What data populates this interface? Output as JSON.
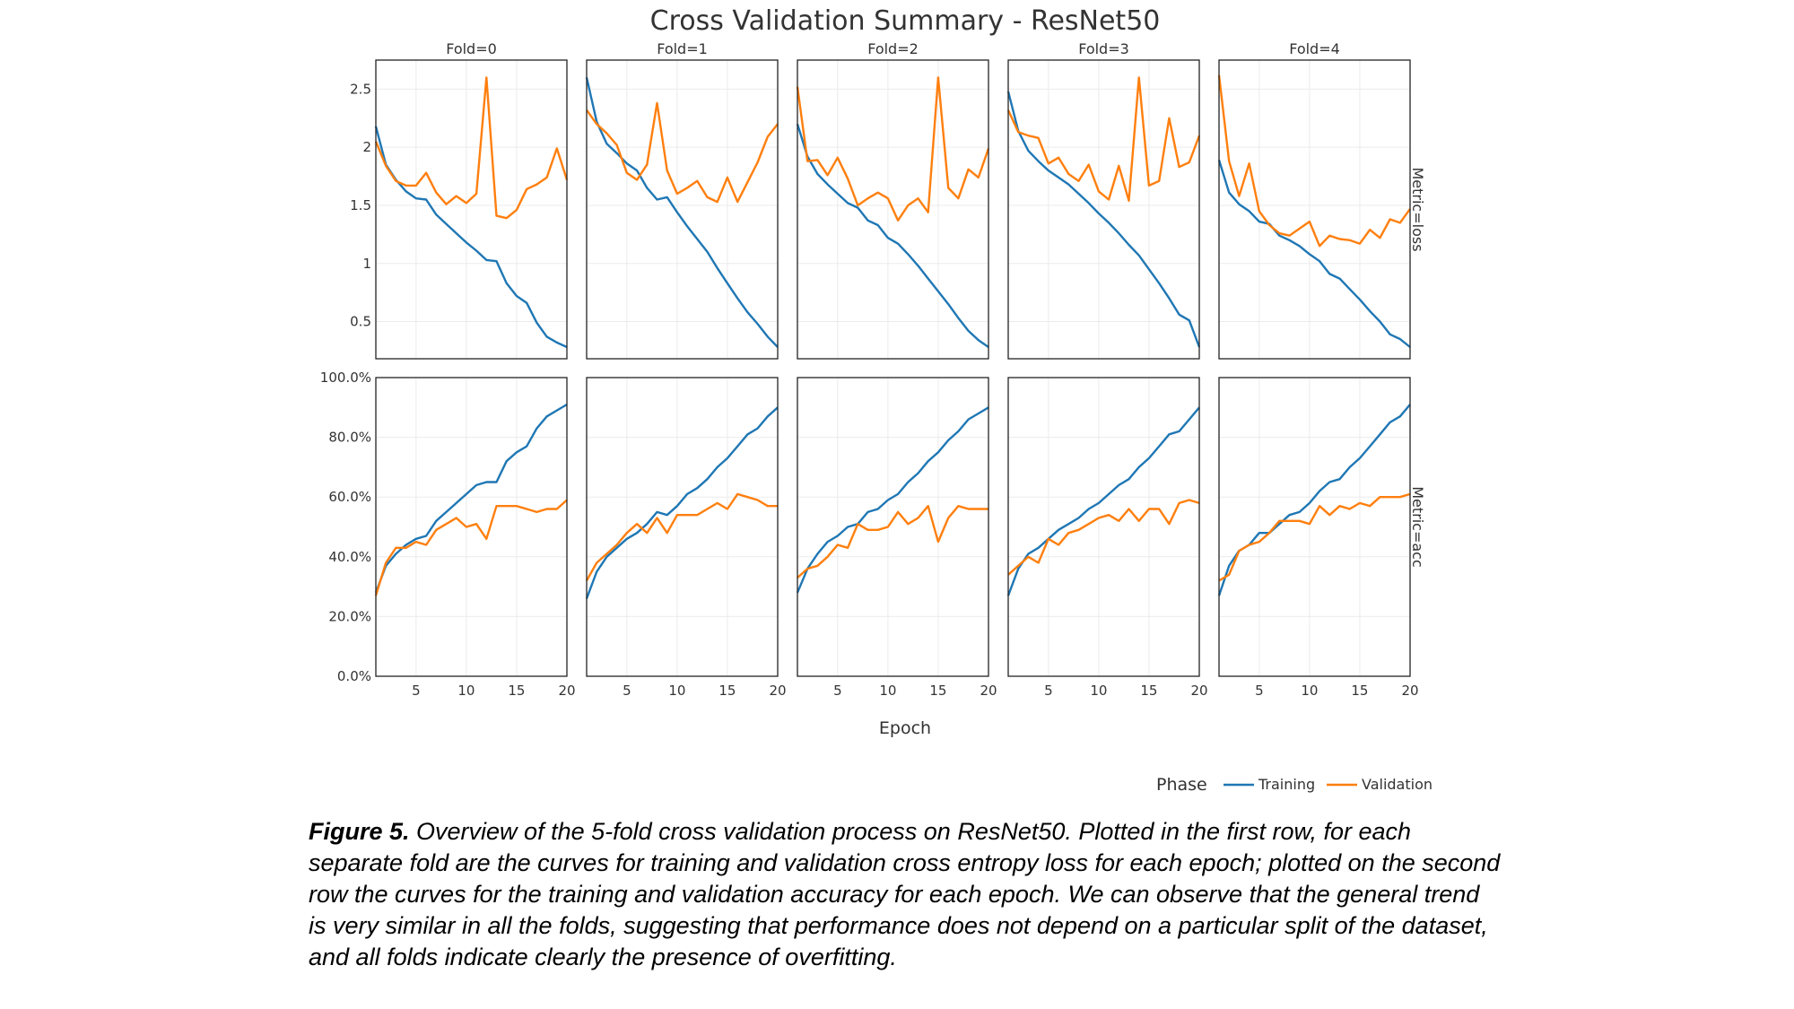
{
  "chart_data": {
    "type": "line",
    "title": "Cross Validation Summary - ResNet50",
    "xlabel": "Epoch",
    "xlim": [
      1,
      20
    ],
    "xticks": [
      5,
      10,
      15,
      20
    ],
    "legend": {
      "title": "Phase",
      "placement": "bottom-right",
      "entries": [
        {
          "name": "Training",
          "color": "#1f77b4"
        },
        {
          "name": "Validation",
          "color": "#ff7f0e"
        }
      ]
    },
    "columns": [
      "Fold=0",
      "Fold=1",
      "Fold=2",
      "Fold=3",
      "Fold=4"
    ],
    "rows": [
      {
        "label": "Metric=loss",
        "ylim": [
          0.18,
          2.75
        ],
        "yticks": [
          0.5,
          1,
          1.5,
          2,
          2.5
        ],
        "ytick_labels": [
          "0.5",
          "1",
          "1.5",
          "2",
          "2.5"
        ],
        "panels": [
          {
            "series": [
              {
                "name": "Training",
                "values": [
                  2.18,
                  1.85,
                  1.72,
                  1.62,
                  1.56,
                  1.55,
                  1.42,
                  1.34,
                  1.26,
                  1.18,
                  1.11,
                  1.03,
                  1.02,
                  0.83,
                  0.72,
                  0.66,
                  0.49,
                  0.37,
                  0.32,
                  0.28
                ]
              },
              {
                "name": "Validation",
                "values": [
                  2.05,
                  1.84,
                  1.71,
                  1.67,
                  1.67,
                  1.78,
                  1.61,
                  1.51,
                  1.58,
                  1.52,
                  1.6,
                  2.6,
                  1.41,
                  1.39,
                  1.46,
                  1.64,
                  1.68,
                  1.74,
                  1.99,
                  1.72
                ]
              }
            ]
          },
          {
            "series": [
              {
                "name": "Training",
                "values": [
                  2.6,
                  2.22,
                  2.03,
                  1.95,
                  1.86,
                  1.8,
                  1.65,
                  1.55,
                  1.57,
                  1.44,
                  1.32,
                  1.21,
                  1.1,
                  0.96,
                  0.83,
                  0.7,
                  0.58,
                  0.48,
                  0.37,
                  0.28
                ]
              },
              {
                "name": "Validation",
                "values": [
                  2.32,
                  2.2,
                  2.12,
                  2.02,
                  1.78,
                  1.72,
                  1.85,
                  2.38,
                  1.8,
                  1.6,
                  1.65,
                  1.71,
                  1.57,
                  1.53,
                  1.74,
                  1.53,
                  1.7,
                  1.87,
                  2.09,
                  2.2
                ]
              }
            ]
          },
          {
            "series": [
              {
                "name": "Training",
                "values": [
                  2.2,
                  1.92,
                  1.77,
                  1.68,
                  1.6,
                  1.52,
                  1.48,
                  1.37,
                  1.33,
                  1.22,
                  1.17,
                  1.08,
                  0.98,
                  0.87,
                  0.76,
                  0.65,
                  0.53,
                  0.42,
                  0.34,
                  0.28
                ]
              },
              {
                "name": "Validation",
                "values": [
                  2.52,
                  1.88,
                  1.89,
                  1.76,
                  1.91,
                  1.73,
                  1.5,
                  1.56,
                  1.61,
                  1.56,
                  1.37,
                  1.5,
                  1.56,
                  1.44,
                  2.6,
                  1.65,
                  1.56,
                  1.81,
                  1.74,
                  1.99
                ]
              }
            ]
          },
          {
            "series": [
              {
                "name": "Training",
                "values": [
                  2.48,
                  2.14,
                  1.97,
                  1.88,
                  1.8,
                  1.74,
                  1.68,
                  1.6,
                  1.52,
                  1.43,
                  1.35,
                  1.26,
                  1.16,
                  1.07,
                  0.95,
                  0.83,
                  0.7,
                  0.56,
                  0.51,
                  0.28
                ]
              },
              {
                "name": "Validation",
                "values": [
                  2.32,
                  2.13,
                  2.1,
                  2.08,
                  1.86,
                  1.91,
                  1.77,
                  1.71,
                  1.85,
                  1.62,
                  1.55,
                  1.84,
                  1.54,
                  2.6,
                  1.67,
                  1.71,
                  2.25,
                  1.83,
                  1.87,
                  2.1
                ]
              }
            ]
          },
          {
            "series": [
              {
                "name": "Training",
                "values": [
                  1.89,
                  1.61,
                  1.51,
                  1.45,
                  1.36,
                  1.34,
                  1.24,
                  1.2,
                  1.15,
                  1.08,
                  1.02,
                  0.91,
                  0.87,
                  0.78,
                  0.69,
                  0.59,
                  0.5,
                  0.39,
                  0.35,
                  0.28
                ]
              },
              {
                "name": "Validation",
                "values": [
                  2.62,
                  1.88,
                  1.58,
                  1.86,
                  1.45,
                  1.33,
                  1.26,
                  1.24,
                  1.3,
                  1.36,
                  1.15,
                  1.24,
                  1.21,
                  1.2,
                  1.17,
                  1.29,
                  1.22,
                  1.38,
                  1.35,
                  1.47
                ]
              }
            ]
          }
        ]
      },
      {
        "label": "Metric=acc",
        "ylim": [
          0,
          100
        ],
        "yticks": [
          0,
          20,
          40,
          60,
          80,
          100
        ],
        "ytick_labels": [
          "0.0%",
          "20.0%",
          "40.0%",
          "60.0%",
          "80.0%",
          "100.0%"
        ],
        "panels": [
          {
            "series": [
              {
                "name": "Training",
                "values": [
                  28,
                  37,
                  41,
                  44,
                  46,
                  47,
                  52,
                  55,
                  58,
                  61,
                  64,
                  65,
                  65,
                  72,
                  75,
                  77,
                  83,
                  87,
                  89,
                  91
                ]
              },
              {
                "name": "Validation",
                "values": [
                  27,
                  38,
                  43,
                  43,
                  45,
                  44,
                  49,
                  51,
                  53,
                  50,
                  51,
                  46,
                  57,
                  57,
                  57,
                  56,
                  55,
                  56,
                  56,
                  59
                ]
              }
            ]
          },
          {
            "series": [
              {
                "name": "Training",
                "values": [
                  26,
                  35,
                  40,
                  43,
                  46,
                  48,
                  51,
                  55,
                  54,
                  57,
                  61,
                  63,
                  66,
                  70,
                  73,
                  77,
                  81,
                  83,
                  87,
                  90
                ]
              },
              {
                "name": "Validation",
                "values": [
                  32,
                  38,
                  41,
                  44,
                  48,
                  51,
                  48,
                  53,
                  48,
                  54,
                  54,
                  54,
                  56,
                  58,
                  56,
                  61,
                  60,
                  59,
                  57,
                  57
                ]
              }
            ]
          },
          {
            "series": [
              {
                "name": "Training",
                "values": [
                  28,
                  36,
                  41,
                  45,
                  47,
                  50,
                  51,
                  55,
                  56,
                  59,
                  61,
                  65,
                  68,
                  72,
                  75,
                  79,
                  82,
                  86,
                  88,
                  90
                ]
              },
              {
                "name": "Validation",
                "values": [
                  33,
                  36,
                  37,
                  40,
                  44,
                  43,
                  51,
                  49,
                  49,
                  50,
                  55,
                  51,
                  53,
                  57,
                  45,
                  53,
                  57,
                  56,
                  56,
                  56
                ]
              }
            ]
          },
          {
            "series": [
              {
                "name": "Training",
                "values": [
                  27,
                  36,
                  41,
                  43,
                  46,
                  49,
                  51,
                  53,
                  56,
                  58,
                  61,
                  64,
                  66,
                  70,
                  73,
                  77,
                  81,
                  82,
                  86,
                  90
                ]
              },
              {
                "name": "Validation",
                "values": [
                  34,
                  37,
                  40,
                  38,
                  46,
                  44,
                  48,
                  49,
                  51,
                  53,
                  54,
                  52,
                  56,
                  52,
                  56,
                  56,
                  51,
                  58,
                  59,
                  58
                ]
              }
            ]
          },
          {
            "series": [
              {
                "name": "Training",
                "values": [
                  27,
                  37,
                  42,
                  44,
                  48,
                  48,
                  51,
                  54,
                  55,
                  58,
                  62,
                  65,
                  66,
                  70,
                  73,
                  77,
                  81,
                  85,
                  87,
                  91
                ]
              },
              {
                "name": "Validation",
                "values": [
                  32,
                  34,
                  42,
                  44,
                  45,
                  48,
                  52,
                  52,
                  52,
                  51,
                  57,
                  54,
                  57,
                  56,
                  58,
                  57,
                  60,
                  60,
                  60,
                  61
                ]
              }
            ]
          }
        ]
      }
    ]
  },
  "caption": {
    "label": "Figure 5.",
    "text": " Overview of the 5-fold cross validation process on ResNet50. Plotted in the first row, for each separate fold are the curves for training and validation cross entropy loss for each epoch; plotted on the second row the curves for the training and validation accuracy for each epoch. We can observe that the general trend is very similar in all the folds, suggesting that performance does not depend on a particular split of the dataset, and all folds indicate clearly the presence of overfitting."
  }
}
